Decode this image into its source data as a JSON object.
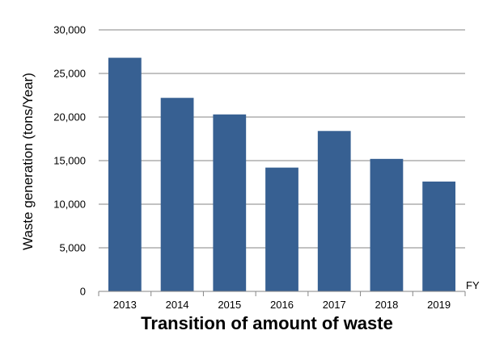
{
  "chart_data": {
    "type": "bar",
    "title": "Transition of amount of waste",
    "ylabel": "Waste generation (tons/Year)",
    "x_unit": "FY",
    "categories": [
      "2013",
      "2014",
      "2015",
      "2016",
      "2017",
      "2018",
      "2019"
    ],
    "values": [
      26800,
      22200,
      20300,
      14200,
      18400,
      15200,
      12600
    ],
    "ylim": [
      0,
      30000
    ],
    "yticks": [
      0,
      5000,
      10000,
      15000,
      20000,
      25000,
      30000
    ],
    "ytick_labels": [
      "0",
      "5,000",
      "10,000",
      "15,000",
      "20,000",
      "25,000",
      "30,000"
    ],
    "grid": true,
    "bar_color": "#376092",
    "grid_color": "#868686"
  }
}
